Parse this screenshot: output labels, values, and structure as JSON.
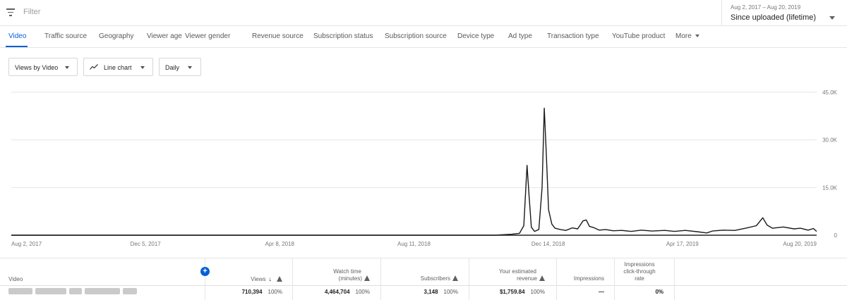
{
  "filter": {
    "placeholder": "Filter",
    "icon": "filter-list-icon"
  },
  "date": {
    "range": "Aug 2, 2017 – Aug 20, 2019",
    "preset": "Since uploaded (lifetime)"
  },
  "tabs": [
    {
      "label": "Video",
      "active": true
    },
    {
      "label": "Traffic source"
    },
    {
      "label": "Geography"
    },
    {
      "label": "Viewer age"
    },
    {
      "label": "Viewer gender"
    },
    {
      "label": "Revenue source"
    },
    {
      "label": "Subscription status"
    },
    {
      "label": "Subscription source"
    },
    {
      "label": "Device type"
    },
    {
      "label": "Ad type"
    },
    {
      "label": "Transaction type"
    },
    {
      "label": "YouTube product"
    },
    {
      "label": "More"
    }
  ],
  "controls": {
    "views_by": "Views by Video",
    "chart_type": "Line chart",
    "interval": "Daily"
  },
  "colors": {
    "accent": "#065fd4",
    "line": "#1a1a1a",
    "grid": "#e6e6e6"
  },
  "chart_data": {
    "type": "line",
    "x_type": "date",
    "x_start": "2017-08-02",
    "x_end": "2019-08-20",
    "x_ticks": [
      "Aug 2, 2017",
      "Dec 5, 2017",
      "Apr 8, 2018",
      "Aug 11, 2018",
      "Dec 14, 2018",
      "Apr 17, 2019",
      "Aug 20, 2019"
    ],
    "y_ticks": [
      "0",
      "15.0K",
      "30.0K",
      "45.0K"
    ],
    "ylim": [
      0,
      45000
    ],
    "grid": true,
    "series": [
      {
        "points": [
          [
            "2017-08-02",
            0
          ],
          [
            "2018-10-25",
            0
          ],
          [
            "2018-11-10",
            300
          ],
          [
            "2018-11-17",
            600
          ],
          [
            "2018-11-21",
            3000
          ],
          [
            "2018-11-24",
            22000
          ],
          [
            "2018-11-26",
            12000
          ],
          [
            "2018-11-28",
            2500
          ],
          [
            "2018-12-01",
            1200
          ],
          [
            "2018-12-05",
            1800
          ],
          [
            "2018-12-08",
            15000
          ],
          [
            "2018-12-10",
            40000
          ],
          [
            "2018-12-12",
            25000
          ],
          [
            "2018-12-14",
            8000
          ],
          [
            "2018-12-17",
            3500
          ],
          [
            "2018-12-20",
            2200
          ],
          [
            "2018-12-25",
            1800
          ],
          [
            "2018-12-30",
            1500
          ],
          [
            "2019-01-05",
            2300
          ],
          [
            "2019-01-10",
            2000
          ],
          [
            "2019-01-15",
            4500
          ],
          [
            "2019-01-18",
            4800
          ],
          [
            "2019-01-21",
            2800
          ],
          [
            "2019-01-25",
            2400
          ],
          [
            "2019-01-30",
            1600
          ],
          [
            "2019-02-05",
            1800
          ],
          [
            "2019-02-12",
            1400
          ],
          [
            "2019-02-20",
            1500
          ],
          [
            "2019-03-01",
            1200
          ],
          [
            "2019-03-10",
            1600
          ],
          [
            "2019-03-20",
            1300
          ],
          [
            "2019-04-01",
            1500
          ],
          [
            "2019-04-10",
            1200
          ],
          [
            "2019-04-20",
            1500
          ],
          [
            "2019-05-01",
            1100
          ],
          [
            "2019-05-10",
            700
          ],
          [
            "2019-05-15",
            1300
          ],
          [
            "2019-05-25",
            1600
          ],
          [
            "2019-06-05",
            1500
          ],
          [
            "2019-06-15",
            2200
          ],
          [
            "2019-06-25",
            3000
          ],
          [
            "2019-07-01",
            5500
          ],
          [
            "2019-07-05",
            3200
          ],
          [
            "2019-07-10",
            2200
          ],
          [
            "2019-07-20",
            2600
          ],
          [
            "2019-07-30",
            2000
          ],
          [
            "2019-08-05",
            2200
          ],
          [
            "2019-08-12",
            1600
          ],
          [
            "2019-08-17",
            2100
          ],
          [
            "2019-08-20",
            1200
          ]
        ]
      }
    ]
  },
  "table": {
    "headers": {
      "video": "Video",
      "views": "Views",
      "watch_time_1": "Watch time",
      "watch_time_2": "(minutes)",
      "subscribers": "Subscribers",
      "revenue_1": "Your estimated",
      "revenue_2": "revenue",
      "impressions": "Impressions",
      "ctr_1": "Impressions",
      "ctr_2": "click-through",
      "ctr_3": "rate"
    },
    "add_button": "+",
    "sort_arrow": "↓",
    "total": {
      "views": "710,394",
      "views_pct": "100%",
      "watch_time": "4,464,704",
      "watch_time_pct": "100%",
      "subscribers": "3,148",
      "subscribers_pct": "100%",
      "revenue": "$1,759.84",
      "revenue_pct": "100%",
      "impressions": "—",
      "ctr": "0%"
    }
  }
}
